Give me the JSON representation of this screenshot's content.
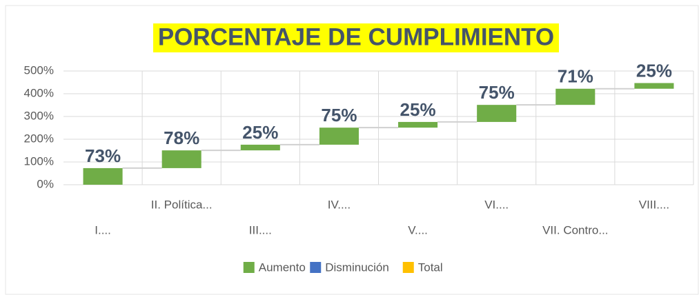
{
  "chart_data": {
    "type": "waterfall",
    "title": "PORCENTAJE DE CUMPLIMIENTO",
    "categories": [
      "I....",
      "II. Política...",
      "III....",
      "IV....",
      "V....",
      "VI....",
      "VII. Contro...",
      "VIII...."
    ],
    "values": [
      73,
      78,
      25,
      75,
      25,
      75,
      71,
      25
    ],
    "value_labels": [
      "73%",
      "78%",
      "25%",
      "75%",
      "25%",
      "75%",
      "71%",
      "25%"
    ],
    "color": "#70ad47",
    "legend": [
      {
        "name": "Aumento",
        "color": "#70ad47"
      },
      {
        "name": "Disminución",
        "color": "#4472c4"
      },
      {
        "name": "Total",
        "color": "#ffc000"
      }
    ],
    "ylim": [
      0,
      500
    ],
    "yticks": [
      {
        "value": 0,
        "label": "0%"
      },
      {
        "value": 100,
        "label": "100%"
      },
      {
        "value": 200,
        "label": "200%"
      },
      {
        "value": 300,
        "label": "300%"
      },
      {
        "value": 400,
        "label": "400%"
      },
      {
        "value": 500,
        "label": "500%"
      }
    ],
    "grid": true,
    "legend_position": "bottom"
  }
}
